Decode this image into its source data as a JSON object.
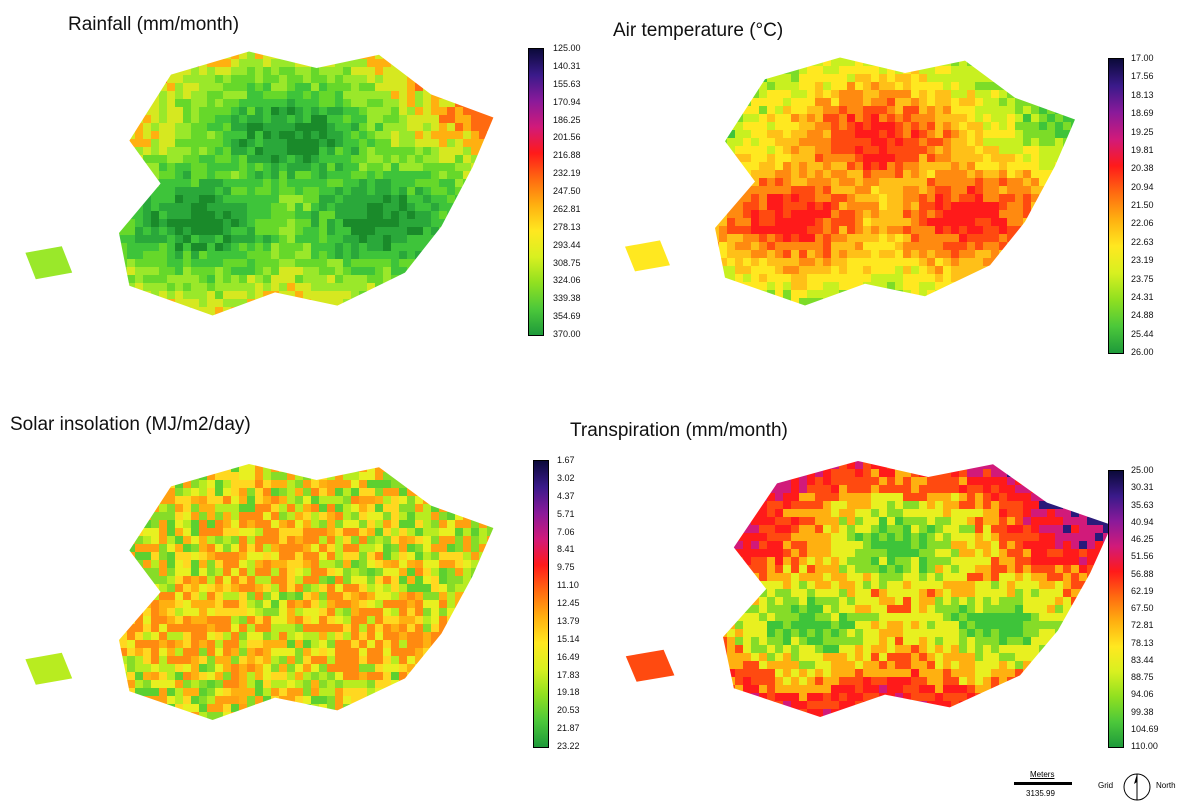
{
  "panels": [
    {
      "title": "Rainfall (mm/month)",
      "legend_ticks": [
        "125.00",
        "140.31",
        "155.63",
        "170.94",
        "186.25",
        "201.56",
        "216.88",
        "232.19",
        "247.50",
        "262.81",
        "278.13",
        "293.44",
        "308.75",
        "324.06",
        "339.38",
        "354.69",
        "370.00"
      ],
      "colormap": [
        "#0b0a3a",
        "#3a1a8a",
        "#8a1a9a",
        "#d11a7a",
        "#ff1a1a",
        "#ff6a10",
        "#ffb010",
        "#ffe820",
        "#d8f020",
        "#90e020",
        "#4cc83a",
        "#1e9a3a"
      ],
      "map_palette": [
        "#1a8a2a",
        "#2aa83a",
        "#3ec43a",
        "#66d82a",
        "#9ae82a",
        "#d6e820",
        "#ffb010",
        "#ff6a10"
      ]
    },
    {
      "title": "Air temperature (°C)",
      "legend_ticks": [
        "17.00",
        "17.56",
        "18.13",
        "18.69",
        "19.25",
        "19.81",
        "20.38",
        "20.94",
        "21.50",
        "22.06",
        "22.63",
        "23.19",
        "23.75",
        "24.31",
        "24.88",
        "25.44",
        "26.00"
      ],
      "colormap": [
        "#0b0a3a",
        "#3a1a8a",
        "#8a1a9a",
        "#d11a7a",
        "#ff1a1a",
        "#ff6a10",
        "#ffb010",
        "#ffe820",
        "#d8f020",
        "#90e020",
        "#4cc83a",
        "#1e9a3a"
      ],
      "map_palette": [
        "#ff1a1a",
        "#ff4a10",
        "#ff8a10",
        "#ffc018",
        "#ffe820",
        "#c8f020",
        "#7cdc28",
        "#3ec43a"
      ]
    },
    {
      "title": "Solar insolation (MJ/m2/day)",
      "legend_ticks": [
        "1.67",
        "3.02",
        "4.37",
        "5.71",
        "7.06",
        "8.41",
        "9.75",
        "11.10",
        "12.45",
        "13.79",
        "15.14",
        "16.49",
        "17.83",
        "19.18",
        "20.53",
        "21.87",
        "23.22"
      ],
      "colormap": [
        "#0b0a3a",
        "#3a1a8a",
        "#8a1a9a",
        "#d11a7a",
        "#ff1a1a",
        "#ff6a10",
        "#ffb010",
        "#ffe820",
        "#d8f020",
        "#90e020",
        "#4cc83a",
        "#1e9a3a"
      ],
      "map_palette": [
        "#ff8a10",
        "#ffb010",
        "#ffd820",
        "#e8f020",
        "#b8ec20",
        "#86dc28",
        "#5cd030",
        "#ffa010"
      ]
    },
    {
      "title": "Transpiration (mm/month)",
      "legend_ticks": [
        "25.00",
        "30.31",
        "35.63",
        "40.94",
        "46.25",
        "51.56",
        "56.88",
        "62.19",
        "67.50",
        "72.81",
        "78.13",
        "83.44",
        "88.75",
        "94.06",
        "99.38",
        "104.69",
        "110.00"
      ],
      "colormap": [
        "#0b0a3a",
        "#3a1a8a",
        "#8a1a9a",
        "#d11a7a",
        "#ff1a1a",
        "#ff6a10",
        "#ffb010",
        "#ffe820",
        "#d8f020",
        "#90e020",
        "#4cc83a",
        "#1e9a3a"
      ],
      "map_palette": [
        "#3ec43a",
        "#86dc28",
        "#e8f020",
        "#ffb010",
        "#ff4a10",
        "#ff1a1a",
        "#d11a7a",
        "#2a1a7a"
      ]
    }
  ],
  "scale_bar": {
    "unit": "Meters",
    "value": "3135.99"
  },
  "north_arrow": {
    "left_label": "Grid",
    "right_label": "North"
  }
}
